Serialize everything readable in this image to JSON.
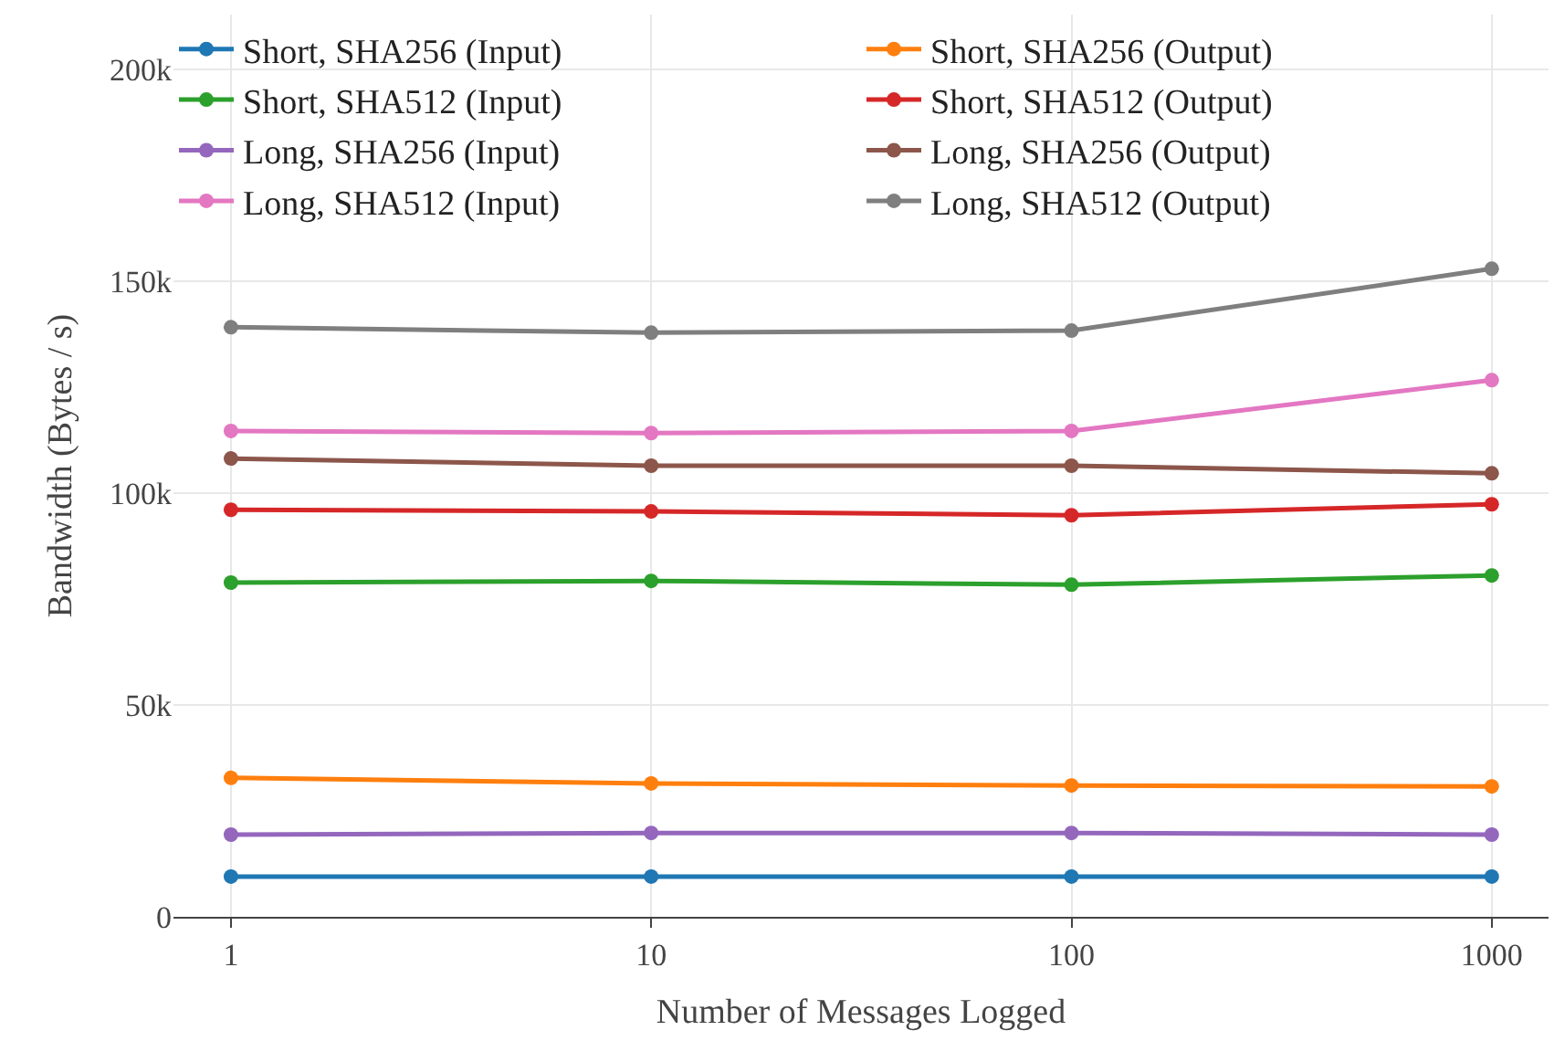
{
  "chart_data": {
    "type": "line",
    "xlabel": "Number of Messages Logged",
    "ylabel": "Bandwidth (Bytes / s)",
    "x": [
      1,
      10,
      100,
      1000
    ],
    "log": "x",
    "xlim": [
      0.73,
      1365
    ],
    "xticks": [
      1,
      10,
      100,
      1000
    ],
    "ylim": [
      0,
      213000
    ],
    "yticks": [
      {
        "value": 0,
        "label": "0"
      },
      {
        "value": 50000,
        "label": "50k"
      },
      {
        "value": 100000,
        "label": "100k"
      },
      {
        "value": 150000,
        "label": "150k"
      },
      {
        "value": 200000,
        "label": "200k"
      }
    ],
    "grid": true,
    "legend": "top left",
    "marker": "circle",
    "line_style": "solid",
    "series": [
      {
        "name": "Short, SHA256 (Input)",
        "color": "#1f77b4",
        "values": [
          9500,
          9500,
          9500,
          9500
        ]
      },
      {
        "name": "Short, SHA256 (Output)",
        "color": "#ff7f0e",
        "values": [
          32800,
          31500,
          31000,
          30800
        ]
      },
      {
        "name": "Short, SHA512 (Input)",
        "color": "#2ca02c",
        "values": [
          78900,
          79300,
          78400,
          80600
        ]
      },
      {
        "name": "Short, SHA512 (Output)",
        "color": "#d62728",
        "values": [
          96100,
          95700,
          94800,
          97400
        ]
      },
      {
        "name": "Long, SHA256 (Input)",
        "color": "#9467bd",
        "values": [
          19400,
          19800,
          19800,
          19400
        ]
      },
      {
        "name": "Long, SHA256 (Output)",
        "color": "#8c564b",
        "values": [
          108200,
          106500,
          106500,
          104700
        ]
      },
      {
        "name": "Long, SHA512 (Input)",
        "color": "#e377c2",
        "values": [
          114700,
          114200,
          114700,
          126700
        ]
      },
      {
        "name": "Long, SHA512 (Output)",
        "color": "#7f7f7f",
        "values": [
          139200,
          137900,
          138400,
          153000
        ]
      }
    ]
  }
}
